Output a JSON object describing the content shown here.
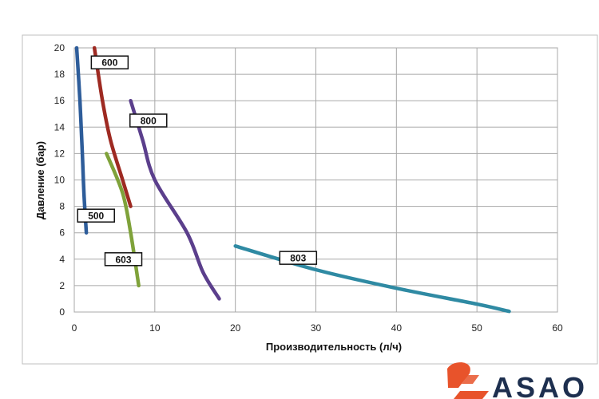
{
  "chart_data": {
    "type": "line",
    "title": "",
    "xlabel": "Производительность (л/ч)",
    "ylabel": "Давление (бар)",
    "xlim": [
      0,
      60
    ],
    "ylim": [
      0,
      20
    ],
    "xticks": [
      0,
      10,
      20,
      30,
      40,
      50,
      60
    ],
    "yticks": [
      0,
      2,
      4,
      6,
      8,
      10,
      12,
      14,
      16,
      18,
      20
    ],
    "grid": true,
    "legend": "none",
    "series": [
      {
        "name": "500",
        "color": "#2e5d9a",
        "points": [
          [
            0.3,
            20
          ],
          [
            0.7,
            16
          ],
          [
            1.0,
            12
          ],
          [
            1.2,
            9
          ],
          [
            1.5,
            6
          ]
        ],
        "label_at": [
          2.7,
          7.3
        ]
      },
      {
        "name": "600",
        "color": "#9e2a22",
        "points": [
          [
            2.5,
            20
          ],
          [
            3.5,
            16
          ],
          [
            4.5,
            13
          ],
          [
            6.0,
            10
          ],
          [
            7.0,
            8
          ]
        ],
        "label_at": [
          4.4,
          18.9
        ]
      },
      {
        "name": "800",
        "color": "#5b3f8c",
        "points": [
          [
            7.0,
            16
          ],
          [
            8.5,
            13
          ],
          [
            10,
            10
          ],
          [
            14,
            6
          ],
          [
            16,
            3
          ],
          [
            18,
            1
          ]
        ],
        "label_at": [
          9.2,
          14.5
        ]
      },
      {
        "name": "603",
        "color": "#7fa23a",
        "points": [
          [
            4.0,
            12
          ],
          [
            6.0,
            9
          ],
          [
            7.0,
            6
          ],
          [
            8.0,
            2
          ]
        ],
        "label_at": [
          6.1,
          4.0
        ]
      },
      {
        "name": "803",
        "color": "#2f8aa3",
        "points": [
          [
            20,
            5
          ],
          [
            30,
            3.2
          ],
          [
            40,
            1.8
          ],
          [
            50,
            0.6
          ],
          [
            54,
            0.05
          ]
        ],
        "label_at": [
          27.8,
          4.1
        ]
      }
    ]
  },
  "brand": {
    "name": "ASAO",
    "colors": {
      "dark": "#1d2f4f",
      "accent": "#e8532b"
    }
  }
}
